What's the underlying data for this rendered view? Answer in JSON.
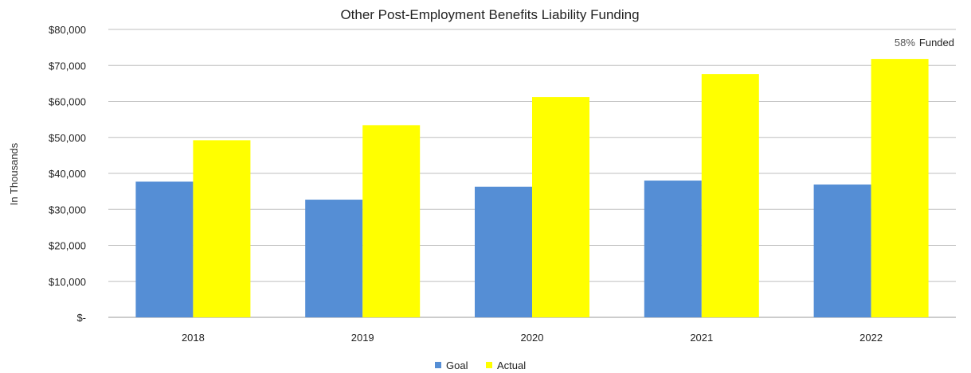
{
  "chart_data": {
    "type": "bar",
    "title": "Other Post-Employment Benefits Liability Funding",
    "xlabel": "",
    "ylabel": "In Thousands",
    "categories": [
      "2018",
      "2019",
      "2020",
      "2021",
      "2022"
    ],
    "series": [
      {
        "name": "Goal",
        "values": [
          37700,
          32700,
          36300,
          38000,
          36900
        ],
        "color": "#558ed5"
      },
      {
        "name": "Actual",
        "values": [
          49200,
          53400,
          61200,
          67600,
          71800
        ],
        "color": "#ffff00"
      }
    ],
    "ylim": [
      0,
      80000
    ],
    "yticks": [
      {
        "value": 0,
        "label": "$-"
      },
      {
        "value": 10000,
        "label": "$10,000"
      },
      {
        "value": 20000,
        "label": "$20,000"
      },
      {
        "value": 30000,
        "label": "$30,000"
      },
      {
        "value": 40000,
        "label": "$40,000"
      },
      {
        "value": 50000,
        "label": "$50,000"
      },
      {
        "value": 60000,
        "label": "$60,000"
      },
      {
        "value": 70000,
        "label": "$70,000"
      },
      {
        "value": 80000,
        "label": "$80,000"
      }
    ],
    "grid": true,
    "legend_position": "bottom",
    "annotation": {
      "percent": "58%",
      "text": "Funded",
      "category": "2022"
    }
  }
}
